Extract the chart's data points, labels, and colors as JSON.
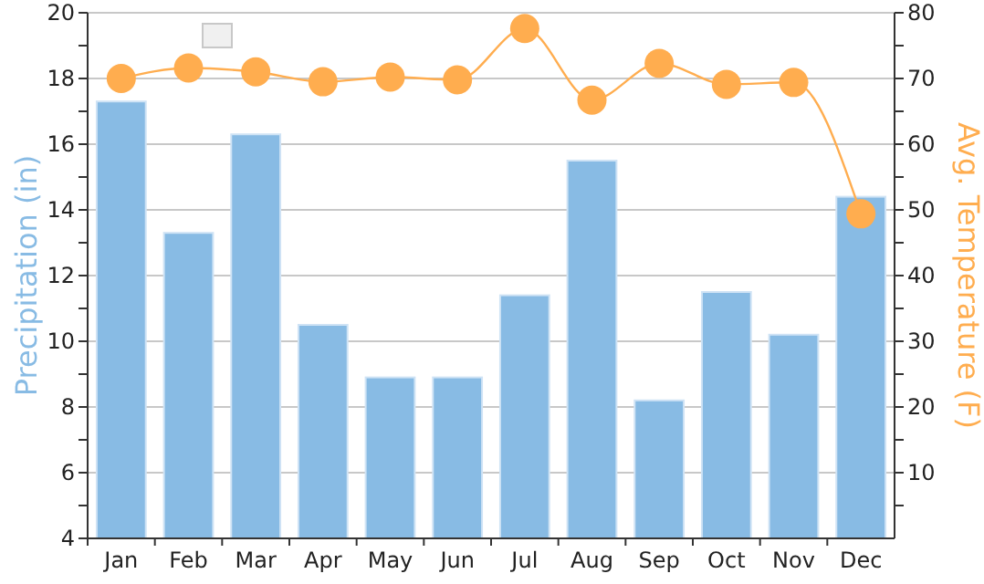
{
  "chart_data": {
    "type": "bar",
    "ylabel": "Precipitation (in)",
    "y2label": "Avg. Temperature (F)",
    "categories": [
      "Jan",
      "Feb",
      "Mar",
      "Apr",
      "May",
      "Jun",
      "Jul",
      "Aug",
      "Sep",
      "Oct",
      "Nov",
      "Dec"
    ],
    "series": [
      {
        "color": "#88bbe4",
        "values": [
          17.3,
          13.3,
          16.3,
          10.5,
          8.9,
          8.9,
          11.4,
          15.5,
          8.2,
          11.5,
          10.2,
          14.4
        ]
      },
      {
        "type": "line",
        "axis": "y2",
        "color": "#ffad4f",
        "marker": "circle",
        "values": [
          70,
          71.6,
          71,
          69.5,
          70.2,
          69.8,
          77.6,
          66.7,
          72.3,
          69.1,
          69.4,
          49.4
        ]
      }
    ],
    "ylim": [
      4,
      20
    ],
    "yticks": [
      4,
      {
        "value": 5,
        "label": null
      },
      6,
      {
        "value": 7,
        "label": null
      },
      8,
      {
        "value": 9,
        "label": null
      },
      10,
      {
        "value": 11,
        "label": null
      },
      12,
      {
        "value": 13,
        "label": null
      },
      14,
      {
        "value": 15,
        "label": null
      },
      16,
      {
        "value": 17,
        "label": null
      },
      18,
      {
        "value": 19,
        "label": null
      },
      20
    ],
    "y2lim": [
      0,
      80
    ],
    "y2ticks": [
      {
        "value": 5,
        "label": null
      },
      10,
      {
        "value": 15,
        "label": null
      },
      20,
      {
        "value": 25,
        "label": null
      },
      30,
      {
        "value": 35,
        "label": null
      },
      40,
      {
        "value": 45,
        "label": null
      },
      50,
      {
        "value": 55,
        "label": null
      },
      60,
      {
        "value": 65,
        "label": null
      },
      70,
      {
        "value": 75,
        "label": null
      },
      80
    ],
    "grid": "y"
  }
}
